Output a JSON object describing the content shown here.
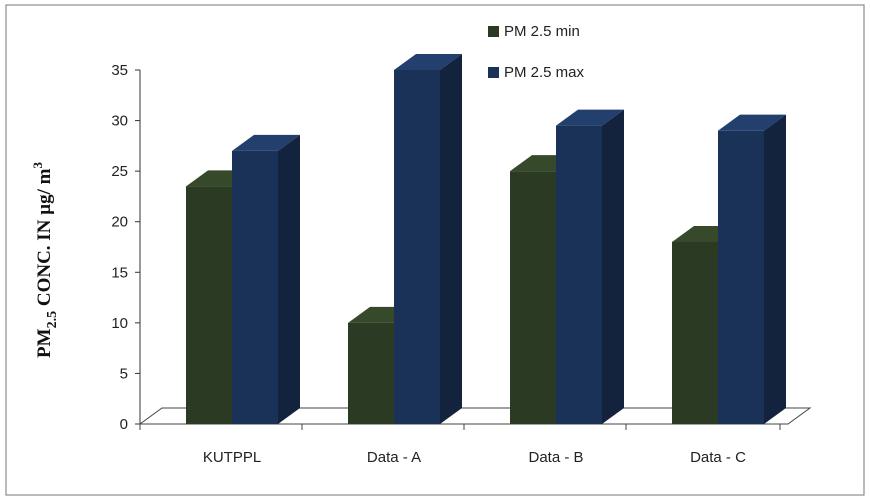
{
  "chart_data": {
    "type": "bar",
    "categories": [
      "KUTPPL",
      "Data - A",
      "Data - B",
      "Data - C"
    ],
    "series": [
      {
        "name": "PM 2.5 min",
        "values": [
          23.5,
          10,
          25,
          18
        ],
        "color": "#2b3a22"
      },
      {
        "name": "PM 2.5 max",
        "values": [
          27,
          35,
          29.5,
          29
        ],
        "color": "#1b3258"
      }
    ],
    "ylim": [
      0,
      35
    ],
    "yticks": [
      "0",
      "5",
      "10",
      "15",
      "20",
      "25",
      "30",
      "35"
    ],
    "ylabel": {
      "prefix": "PM",
      "prefix_sub": "2.5",
      "main": " CONC. IN µg/ m",
      "main_sup": "3"
    },
    "legend_position": "top-center",
    "grid": false,
    "style": "3d-column"
  }
}
